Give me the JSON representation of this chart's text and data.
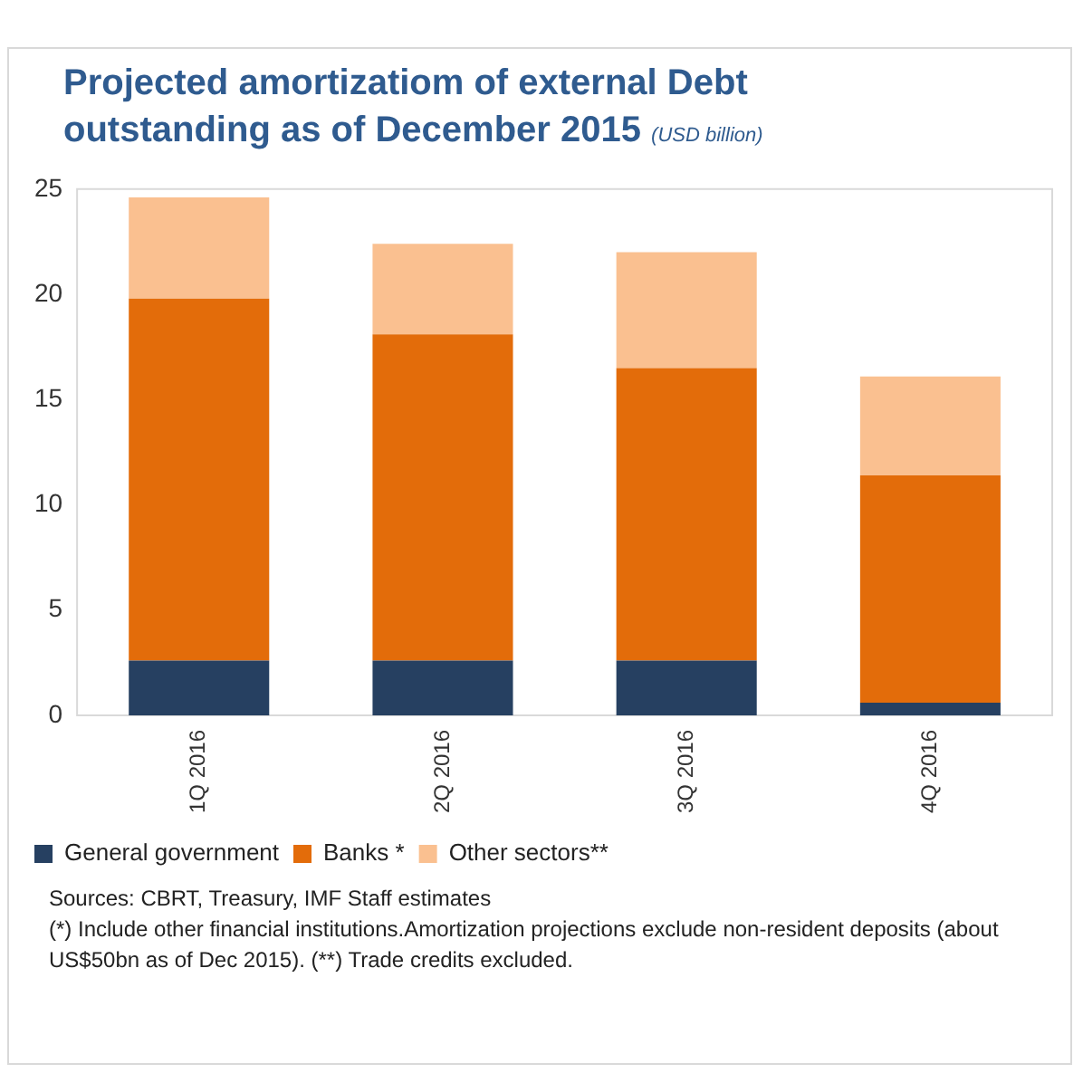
{
  "chart_data": {
    "type": "bar",
    "stacked": true,
    "title": "Projected amortizatiom of external Debt outstanding as of December 2015",
    "subtitle": "(USD billion)",
    "categories": [
      "1Q 2016",
      "2Q 2016",
      "3Q 2016",
      "4Q 2016"
    ],
    "series": [
      {
        "name": "General government",
        "color": "#264061",
        "values": [
          2.6,
          2.6,
          2.6,
          0.6
        ]
      },
      {
        "name": "Banks *",
        "color": "#e36c0a",
        "values": [
          17.2,
          15.5,
          13.9,
          10.8
        ]
      },
      {
        "name": "Other sectors**",
        "color": "#fac090",
        "values": [
          4.8,
          4.3,
          5.5,
          4.7
        ]
      }
    ],
    "ylim": [
      0,
      25
    ],
    "yticks": [
      0,
      5,
      10,
      15,
      20,
      25
    ],
    "grid": false,
    "legend": "bottom",
    "annotations": [
      "Sources: CBRT, Treasury, IMF Staff estimates",
      "(*) Include other financial institutions.Amortization projections exclude non-resident deposits (about US$50bn as of  Dec 2015). (**) Trade credits excluded."
    ]
  }
}
